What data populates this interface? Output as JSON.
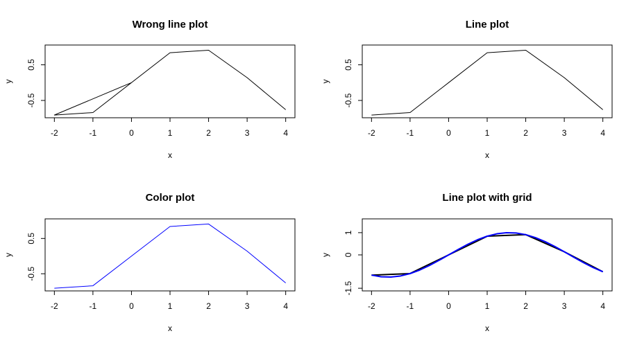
{
  "chart_data": [
    {
      "type": "line",
      "title": "Wrong line plot",
      "xlabel": "x",
      "ylabel": "y",
      "xlim": [
        -2,
        4
      ],
      "ylim": [
        -0.91,
        0.98
      ],
      "xticks": [
        -2,
        -1,
        0,
        1,
        2,
        3,
        4
      ],
      "yticks": [
        -0.5,
        0.5
      ],
      "grid": false,
      "series": [
        {
          "color": "#000000",
          "x": [
            -2,
            -1,
            0,
            -2,
            -1,
            1,
            2,
            3,
            4
          ],
          "y": [
            -0.91,
            -0.84,
            0.0,
            -0.91,
            -0.84,
            0.84,
            0.91,
            0.14,
            -0.76
          ]
        }
      ]
    },
    {
      "type": "line",
      "title": "Line plot",
      "xlabel": "x",
      "ylabel": "y",
      "xlim": [
        -2,
        4
      ],
      "ylim": [
        -0.91,
        0.98
      ],
      "xticks": [
        -2,
        -1,
        0,
        1,
        2,
        3,
        4
      ],
      "yticks": [
        -0.5,
        0.5
      ],
      "grid": false,
      "series": [
        {
          "color": "#000000",
          "x": [
            -2,
            -1,
            0,
            1,
            2,
            3,
            4
          ],
          "y": [
            -0.91,
            -0.84,
            0.0,
            0.84,
            0.91,
            0.14,
            -0.76
          ]
        }
      ]
    },
    {
      "type": "line",
      "title": "Color plot",
      "xlabel": "x",
      "ylabel": "y",
      "xlim": [
        -2,
        4
      ],
      "ylim": [
        -0.91,
        0.98
      ],
      "xticks": [
        -2,
        -1,
        0,
        1,
        2,
        3,
        4
      ],
      "yticks": [
        -0.5,
        0.5
      ],
      "grid": false,
      "series": [
        {
          "color": "#0000ff",
          "x": [
            -2,
            -1,
            0,
            1,
            2,
            3,
            4
          ],
          "y": [
            -0.91,
            -0.84,
            0.0,
            0.84,
            0.91,
            0.14,
            -0.76
          ]
        }
      ]
    },
    {
      "type": "line",
      "title": "Line plot with grid",
      "xlabel": "x",
      "ylabel": "y",
      "xlim": [
        -2,
        4
      ],
      "ylim": [
        -1.5,
        1.5
      ],
      "xticks": [
        -2,
        -1,
        0,
        1,
        2,
        3,
        4
      ],
      "yticks": [
        -1.5,
        0.0,
        1.0
      ],
      "grid": false,
      "series": [
        {
          "color": "#000000",
          "x": [
            -2,
            -1,
            0,
            1,
            2,
            3,
            4
          ],
          "y": [
            -0.91,
            -0.84,
            0.0,
            0.84,
            0.91,
            0.14,
            -0.76
          ]
        },
        {
          "color": "#0000ff",
          "x": [
            -2.0,
            -1.75,
            -1.5,
            -1.25,
            -1.0,
            -0.75,
            -0.5,
            -0.25,
            0.0,
            0.25,
            0.5,
            0.75,
            1.0,
            1.25,
            1.5,
            1.75,
            2.0,
            2.25,
            2.5,
            2.75,
            3.0,
            3.25,
            3.5,
            3.75,
            4.0
          ],
          "y": [
            -0.909,
            -0.984,
            -0.997,
            -0.949,
            -0.841,
            -0.682,
            -0.479,
            -0.247,
            0.0,
            0.247,
            0.479,
            0.682,
            0.841,
            0.949,
            0.997,
            0.984,
            0.909,
            0.778,
            0.598,
            0.382,
            0.141,
            -0.108,
            -0.351,
            -0.572,
            -0.757
          ]
        }
      ]
    }
  ]
}
